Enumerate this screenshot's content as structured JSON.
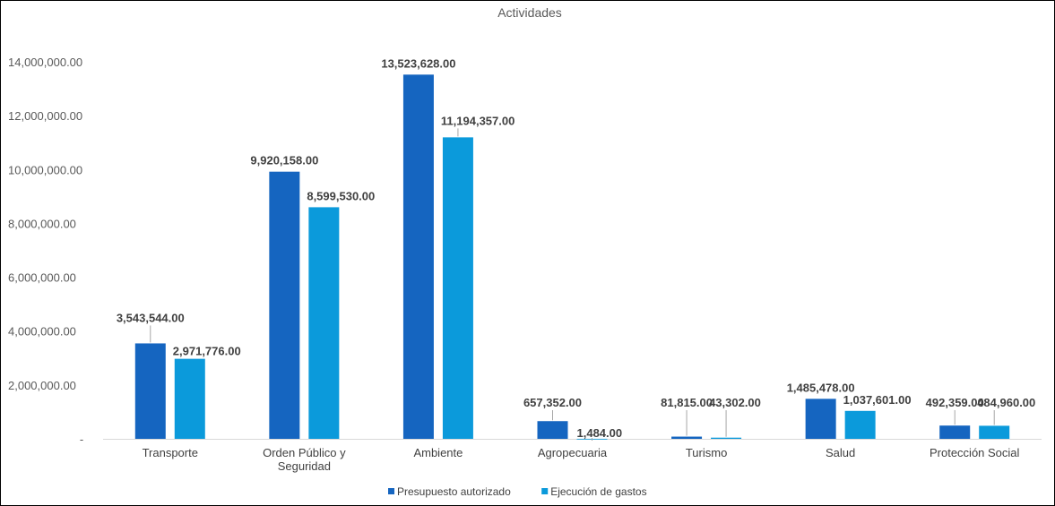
{
  "chart_data": {
    "type": "bar",
    "title": "Actividades",
    "categories": [
      [
        "Transporte"
      ],
      [
        "Orden Público y",
        "Seguridad"
      ],
      [
        "Ambiente"
      ],
      [
        "Agropecuaria"
      ],
      [
        "Turismo"
      ],
      [
        "Salud"
      ],
      [
        "Protección Social"
      ]
    ],
    "series": [
      {
        "name": "Presupuesto autorizado",
        "color": "#1565C0",
        "values": [
          3543544,
          9920158,
          13523628,
          657352,
          81815,
          1485478,
          492359
        ],
        "labels": [
          "3,543,544.00",
          "9,920,158.00",
          "13,523,628.00",
          "657,352.00",
          "81,815.00",
          "1,485,478.00",
          "492,359.00"
        ]
      },
      {
        "name": "Ejecución de gastos",
        "color": "#0B9ADB",
        "values": [
          2971776,
          8599530,
          11194357,
          1484,
          43302,
          1037601,
          484960
        ],
        "labels": [
          "2,971,776.00",
          "8,599,530.00",
          "11,194,357.00",
          "1,484.00",
          "43,302.00",
          "1,037,601.00",
          "484,960.00"
        ]
      }
    ],
    "ylim": [
      0,
      14000000
    ],
    "yticks": [
      0,
      2000000,
      4000000,
      6000000,
      8000000,
      10000000,
      12000000,
      14000000
    ],
    "ytick_labels": [
      "-",
      "2,000,000.00",
      "4,000,000.00",
      "6,000,000.00",
      "8,000,000.00",
      "10,000,000.00",
      "12,000,000.00",
      "14,000,000.00"
    ],
    "xlabel": "",
    "ylabel": "",
    "grid": false,
    "legend": "bottom"
  }
}
